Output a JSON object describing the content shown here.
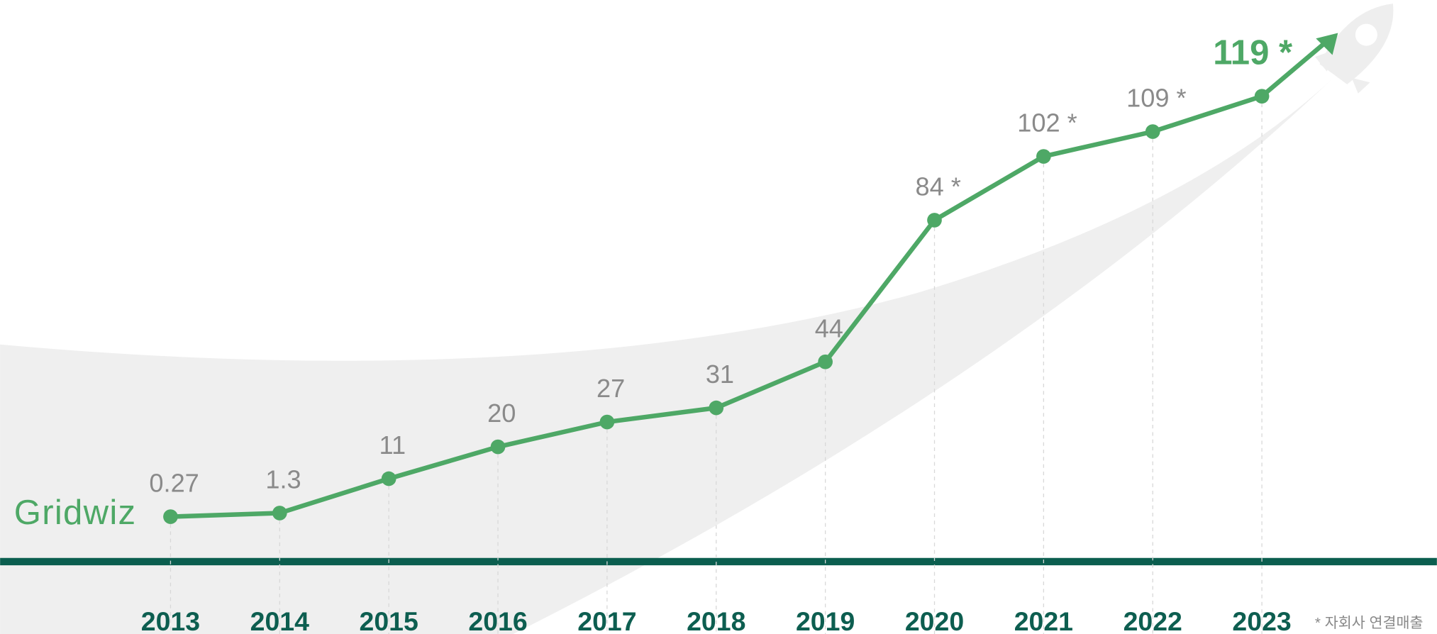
{
  "chart_data": {
    "type": "line",
    "categories": [
      "2013",
      "2014",
      "2015",
      "2016",
      "2017",
      "2018",
      "2019",
      "2020",
      "2021",
      "2022",
      "2023"
    ],
    "values": [
      0.27,
      1.3,
      11,
      20,
      27,
      31,
      44,
      84,
      102,
      109,
      119
    ],
    "value_labels": [
      "0.27",
      "1.3",
      "11",
      "20",
      "27",
      "31",
      "44",
      "84 *",
      "102 *",
      "109 *",
      "119 *"
    ],
    "color": "#4ea866",
    "logo": "Gridwiz",
    "note": "* 자회사 연결매출"
  }
}
